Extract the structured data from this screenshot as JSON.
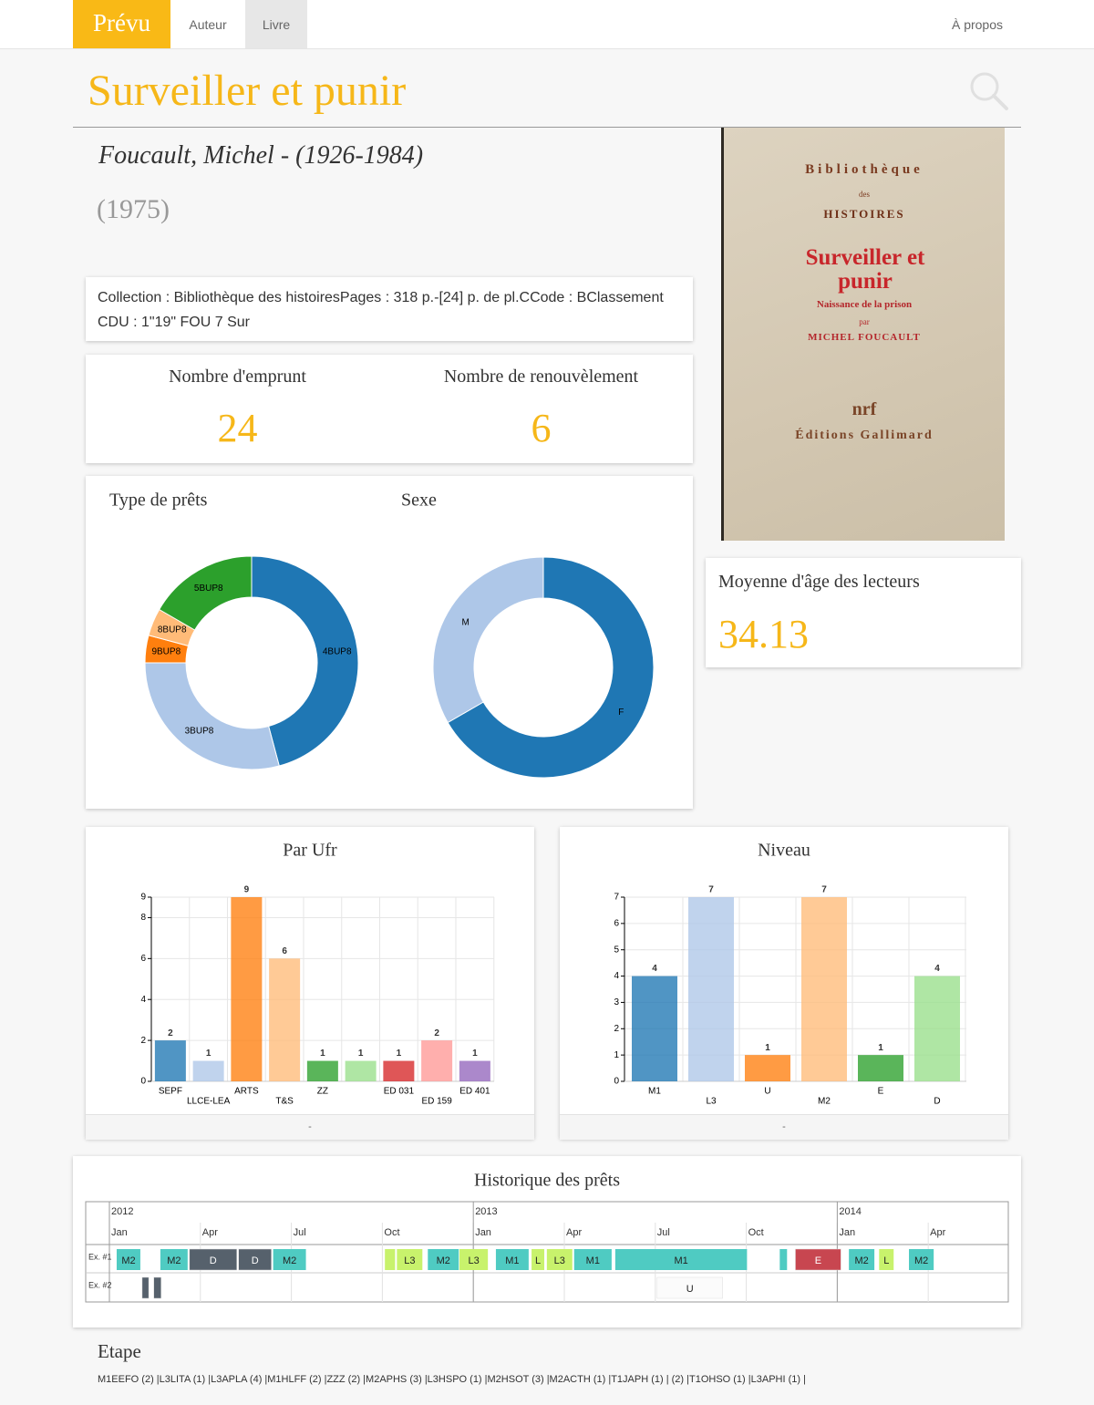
{
  "nav": {
    "brand": "Prévu",
    "links": [
      "Auteur",
      "Livre"
    ],
    "about": "À propos"
  },
  "book": {
    "title": "Surveiller et punir",
    "author": "Foucault, Michel - (1926-1984)",
    "year": "(1975)",
    "info": "Collection : Bibliothèque des histoiresPages : 318 p.-[24] p. de pl.CCode : BClassement CDU : 1\"19\" FOU 7 Sur"
  },
  "cover": {
    "series": "Bibliothèque",
    "series_de": "des",
    "series_name": "HISTOIRES",
    "title": "Surveiller et punir",
    "subtitle": "Naissance de la prison",
    "by": "par",
    "author": "MICHEL FOUCAULT",
    "imprint": "nrf",
    "publisher": "Éditions Gallimard"
  },
  "stats": [
    {
      "label": "Nombre d'emprunt",
      "value": 24
    },
    {
      "label": "Nombre de renouvèlement",
      "value": 6
    }
  ],
  "age": {
    "label": "Moyenne d'âge des lecteurs",
    "value": 34.13
  },
  "chart_data": [
    {
      "type": "pie",
      "title": "Type de prêts",
      "categories": [
        "4BUP8",
        "3BUP8",
        "9BUP8",
        "8BUP8",
        "5BUP8"
      ],
      "values": [
        11,
        7,
        1,
        1,
        4
      ],
      "colors": [
        "#1f77b4",
        "#aec7e8",
        "#ff7f0e",
        "#ffbb78",
        "#2ca02c"
      ]
    },
    {
      "type": "pie",
      "title": "Sexe",
      "categories": [
        "F",
        "M"
      ],
      "values": [
        16,
        8
      ],
      "colors": [
        "#1f77b4",
        "#aec7e8"
      ]
    },
    {
      "type": "bar",
      "title": "Par Ufr",
      "categories": [
        "SEPF",
        "LLCE-LEA",
        "ARTS",
        "T&S",
        "ZZ",
        null,
        "ED 031",
        "ED 159",
        "ED 401"
      ],
      "values": [
        2,
        1,
        9,
        6,
        1,
        1,
        1,
        2,
        1
      ],
      "colors": [
        "#1f77b4",
        "#aec7e8",
        "#ff7f0e",
        "#ffbb78",
        "#2ca02c",
        "#98df8a",
        "#d62728",
        "#ff9896",
        "#9467bd"
      ],
      "ylim": [
        0,
        9
      ],
      "yticks": [
        0,
        2,
        4,
        6,
        8,
        9
      ],
      "grid": true,
      "footer": "-"
    },
    {
      "type": "bar",
      "title": "Niveau",
      "categories": [
        "M1",
        "L3",
        "U",
        "M2",
        "E",
        "D"
      ],
      "values": [
        4,
        7,
        1,
        7,
        1,
        4
      ],
      "colors": [
        "#1f77b4",
        "#aec7e8",
        "#ff7f0e",
        "#ffbb78",
        "#2ca02c",
        "#98df8a"
      ],
      "ylim": [
        0,
        7
      ],
      "yticks": [
        0,
        1,
        2,
        3,
        4,
        5,
        6,
        7
      ],
      "grid": true,
      "footer": "-"
    },
    {
      "type": "timeline",
      "title": "Historique des prêts",
      "xlim": [
        2012,
        2014.47
      ],
      "year_ticks": [
        {
          "value": 2012,
          "label": "2012"
        },
        {
          "value": 2013,
          "label": "2013"
        },
        {
          "value": 2014,
          "label": "2014"
        }
      ],
      "xticks": [
        {
          "value": 2012,
          "label": "Jan"
        },
        {
          "value": 2012.25,
          "label": "Apr"
        },
        {
          "value": 2012.5,
          "label": "Jul"
        },
        {
          "value": 2012.75,
          "label": "Oct"
        },
        {
          "value": 2013,
          "label": "Jan"
        },
        {
          "value": 2013.25,
          "label": "Apr"
        },
        {
          "value": 2013.5,
          "label": "Jul"
        },
        {
          "value": 2013.75,
          "label": "Oct"
        },
        {
          "value": 2014,
          "label": "Jan"
        },
        {
          "value": 2014.25,
          "label": "Apr"
        }
      ],
      "rows": [
        {
          "name": "Ex. #1",
          "bars": [
            {
              "label": "M2",
              "start": 2012.02,
              "end": 2012.085,
              "color": "#4fcbc2"
            },
            {
              "label": "M2",
              "start": 2012.14,
              "end": 2012.215,
              "color": "#4fcbc2"
            },
            {
              "label": "D",
              "start": 2012.22,
              "end": 2012.35,
              "color": "#56616c"
            },
            {
              "label": "D",
              "start": 2012.355,
              "end": 2012.445,
              "color": "#56616c"
            },
            {
              "label": "M2",
              "start": 2012.45,
              "end": 2012.54,
              "color": "#4fcbc2"
            },
            {
              "label": null,
              "start": 2012.757,
              "end": 2012.785,
              "color": "#c8f26c"
            },
            {
              "label": "L3",
              "start": 2012.79,
              "end": 2012.86,
              "color": "#c8f26c"
            },
            {
              "label": "M2",
              "start": 2012.875,
              "end": 2012.96,
              "color": "#4fcbc2"
            },
            {
              "label": "L3",
              "start": 2012.962,
              "end": 2013.04,
              "color": "#c8f26c"
            },
            {
              "label": "M1",
              "start": 2013.062,
              "end": 2013.152,
              "color": "#4fcbc2"
            },
            {
              "label": "L",
              "start": 2013.16,
              "end": 2013.195,
              "color": "#c8f26c"
            },
            {
              "label": "L3",
              "start": 2013.202,
              "end": 2013.272,
              "color": "#c8f26c"
            },
            {
              "label": "M1",
              "start": 2013.277,
              "end": 2013.38,
              "color": "#4fcbc2"
            },
            {
              "label": "M1",
              "start": 2013.39,
              "end": 2013.752,
              "color": "#4fcbc2"
            },
            {
              "label": null,
              "start": 2013.842,
              "end": 2013.862,
              "color": "#4fcbc2"
            },
            {
              "label": "E",
              "start": 2013.885,
              "end": 2014.01,
              "color": "#c84650"
            },
            {
              "label": "M2",
              "start": 2014.032,
              "end": 2014.102,
              "color": "#4fcbc2"
            },
            {
              "label": "L",
              "start": 2014.115,
              "end": 2014.155,
              "color": "#c8f26c"
            },
            {
              "label": "M2",
              "start": 2014.197,
              "end": 2014.265,
              "color": "#4fcbc2"
            }
          ]
        },
        {
          "name": "Ex. #2",
          "bars": [
            {
              "label": null,
              "start": 2012.09,
              "end": 2012.108,
              "color": "#56616c"
            },
            {
              "label": null,
              "start": 2012.122,
              "end": 2012.142,
              "color": "#56616c"
            },
            {
              "label": "U",
              "start": 2013.505,
              "end": 2013.685,
              "color": "#fbfbfb"
            }
          ]
        }
      ]
    }
  ],
  "etape": {
    "title": "Etape",
    "text": "M1EEFO (2) |L3LITA (1) |L3APLA (4) |M1HLFF (2) |ZZZ (2) |M2APHS (3) |L3HSPO (1) |M2HSOT (3) |M2ACTH (1) |T1JAPH (1) | (2) |T1OHSO (1) |L3APHI (1) |"
  }
}
